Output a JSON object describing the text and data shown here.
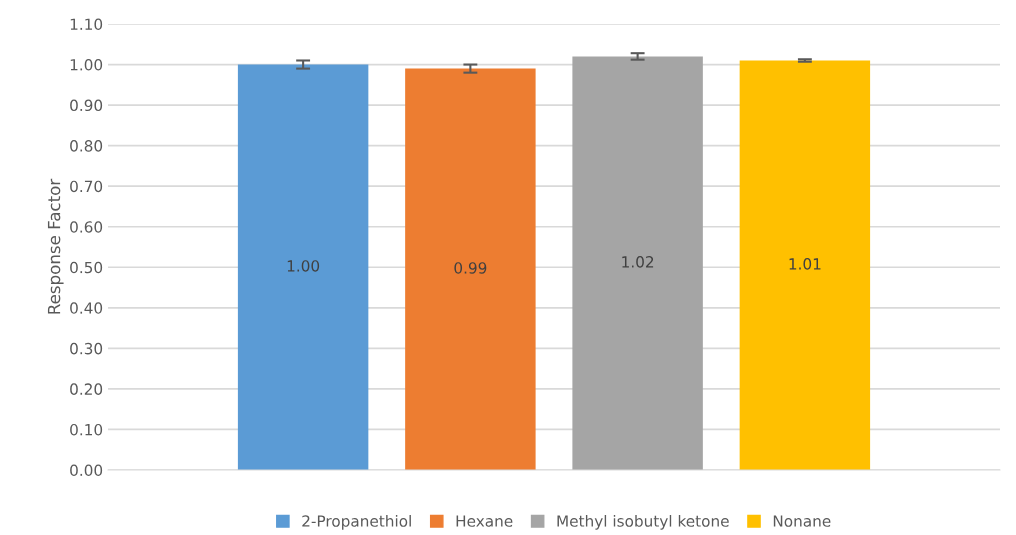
{
  "chart_data": {
    "type": "bar",
    "ylabel": "Response Factor",
    "categories": [
      null
    ],
    "series": [
      {
        "name": "2-Propanethiol",
        "color": "#5b9bd5",
        "values": [
          1.0
        ],
        "errors": [
          0.01
        ],
        "value_labels": [
          "1.00"
        ]
      },
      {
        "name": "Hexane",
        "color": "#ed7d31",
        "values": [
          0.99
        ],
        "errors": [
          0.01
        ],
        "value_labels": [
          "0.99"
        ]
      },
      {
        "name": "Methyl isobutyl ketone",
        "color": "#a5a5a5",
        "values": [
          1.02
        ],
        "errors": [
          0.008
        ],
        "value_labels": [
          "1.02"
        ]
      },
      {
        "name": "Nonane",
        "color": "#ffc000",
        "values": [
          1.01
        ],
        "errors": [
          0.003
        ],
        "value_labels": [
          "1.01"
        ]
      }
    ],
    "ylim": [
      0,
      1.1
    ],
    "yticks": [
      {
        "value": 0,
        "label": "0.00"
      },
      {
        "value": 0.1,
        "label": "0.10"
      },
      {
        "value": 0.2,
        "label": "0.20"
      },
      {
        "value": 0.3,
        "label": "0.30"
      },
      {
        "value": 0.4,
        "label": "0.40"
      },
      {
        "value": 0.5,
        "label": "0.50"
      },
      {
        "value": 0.6,
        "label": "0.60"
      },
      {
        "value": 0.7,
        "label": "0.70"
      },
      {
        "value": 0.8,
        "label": "0.80"
      },
      {
        "value": 0.9,
        "label": "0.90"
      },
      {
        "value": 1.0,
        "label": "1.00"
      },
      {
        "value": 1.1,
        "label": "1.10"
      }
    ],
    "grid": "y",
    "legend": "bottom"
  }
}
